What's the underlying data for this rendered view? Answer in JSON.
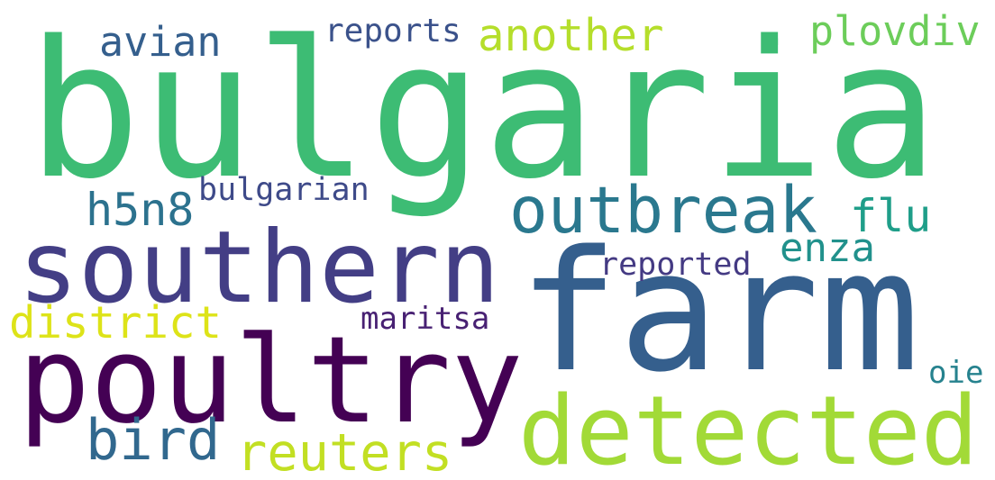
{
  "words": [
    {
      "text": "bulgaria",
      "color": "#3dbc74"
    },
    {
      "text": "farm",
      "color": "#355f8d"
    },
    {
      "text": "southern",
      "color": "#433e85"
    },
    {
      "text": "poultry",
      "color": "#440154"
    },
    {
      "text": "detected",
      "color": "#a2da37"
    },
    {
      "text": "outbreak",
      "color": "#2a788e"
    },
    {
      "text": "reuters",
      "color": "#c2df23"
    },
    {
      "text": "bird",
      "color": "#31688e"
    },
    {
      "text": "district",
      "color": "#dde318"
    },
    {
      "text": "h5n8",
      "color": "#2c728e"
    },
    {
      "text": "bulgarian",
      "color": "#3e4a89"
    },
    {
      "text": "avian",
      "color": "#355f8d"
    },
    {
      "text": "reports",
      "color": "#3b528b"
    },
    {
      "text": "another",
      "color": "#b5de2b"
    },
    {
      "text": "plovdiv",
      "color": "#6ccd5a"
    },
    {
      "text": "flu",
      "color": "#1f9e89"
    },
    {
      "text": "enza",
      "color": "#21918c"
    },
    {
      "text": "reported",
      "color": "#443a83"
    },
    {
      "text": "maritsa",
      "color": "#482173"
    },
    {
      "text": "oie",
      "color": "#26828e"
    },
    {
      "text": ".",
      "color": "#3dbc74"
    }
  ]
}
